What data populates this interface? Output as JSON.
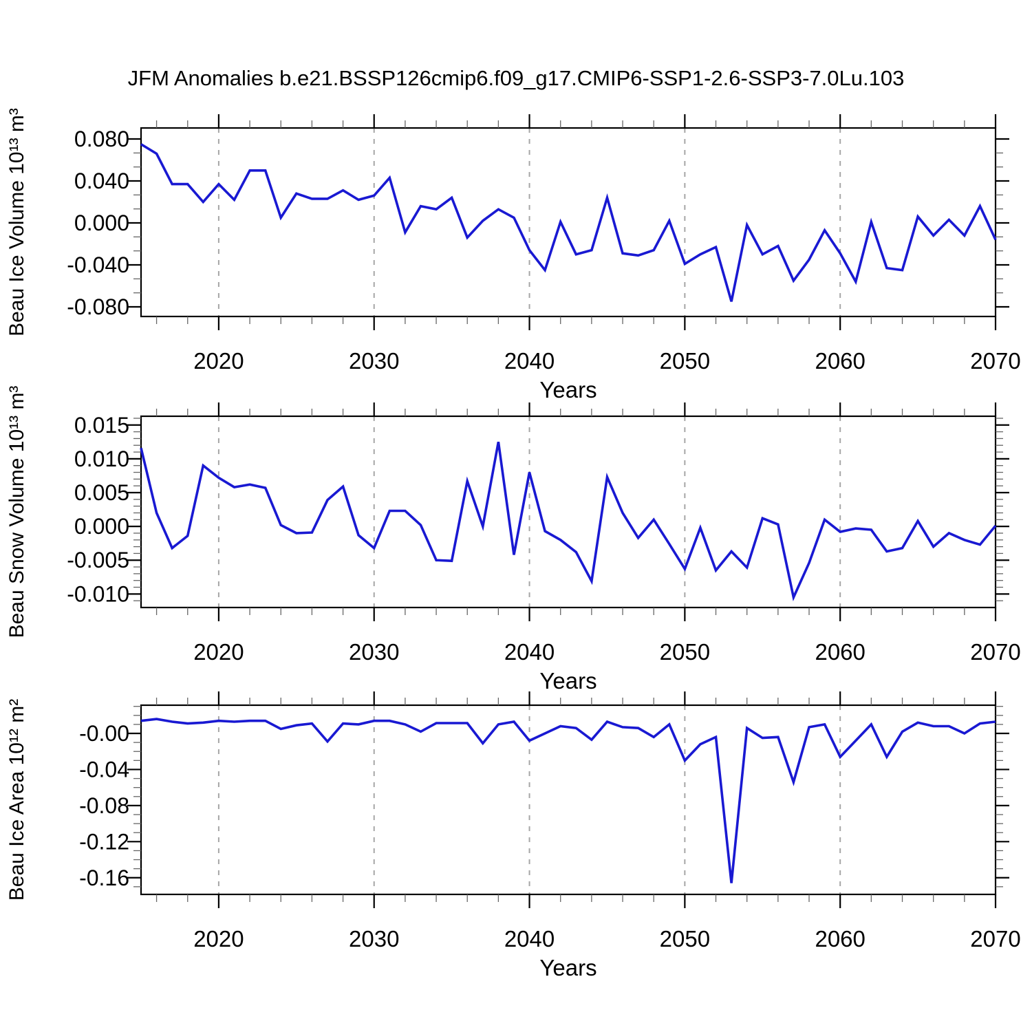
{
  "title": "JFM Anomalies b.e21.BSSP126cmip6.f09_g17.CMIP6-SSP1-2.6-SSP3-7.0Lu.103",
  "xlabel": "Years",
  "colors": {
    "line": "#1919d2",
    "grid": "#a6a6a6",
    "axis": "#000000",
    "minor_tick": "#666666",
    "background": "#ffffff"
  },
  "x_range": [
    2015,
    2070
  ],
  "x_major_step": 10,
  "x_minor_step": 2,
  "gridline_years": [
    2020,
    2030,
    2040,
    2050,
    2060
  ],
  "x_ticks": [
    {
      "value": 2020,
      "label": "2020"
    },
    {
      "value": 2030,
      "label": "2030"
    },
    {
      "value": 2040,
      "label": "2040"
    },
    {
      "value": 2050,
      "label": "2050"
    },
    {
      "value": 2060,
      "label": "2060"
    },
    {
      "value": 2070,
      "label": "2070"
    }
  ],
  "years": [
    2015,
    2016,
    2017,
    2018,
    2019,
    2020,
    2021,
    2022,
    2023,
    2024,
    2025,
    2026,
    2027,
    2028,
    2029,
    2030,
    2031,
    2032,
    2033,
    2034,
    2035,
    2036,
    2037,
    2038,
    2039,
    2040,
    2041,
    2042,
    2043,
    2044,
    2045,
    2046,
    2047,
    2048,
    2049,
    2050,
    2051,
    2052,
    2053,
    2054,
    2055,
    2056,
    2057,
    2058,
    2059,
    2060,
    2061,
    2062,
    2063,
    2064,
    2065,
    2066,
    2067,
    2068,
    2069,
    2070
  ],
  "chart_data": [
    {
      "type": "line",
      "name": "beau-ice-volume",
      "ylabel": "Beau Ice Volume 10¹³ m³",
      "xlabel": "Years",
      "ylim": [
        -0.0892,
        0.0905
      ],
      "y_major_step": 0.04,
      "y_minor_per_major": 3,
      "yticks": [
        {
          "value": 0.08,
          "label": "0.080"
        },
        {
          "value": 0.04,
          "label": "0.040"
        },
        {
          "value": 0.0,
          "label": "0.000"
        },
        {
          "value": -0.04,
          "label": "-0.040"
        },
        {
          "value": -0.08,
          "label": "-0.080"
        }
      ],
      "x": [
        2015,
        2016,
        2017,
        2018,
        2019,
        2020,
        2021,
        2022,
        2023,
        2024,
        2025,
        2026,
        2027,
        2028,
        2029,
        2030,
        2031,
        2032,
        2033,
        2034,
        2035,
        2036,
        2037,
        2038,
        2039,
        2040,
        2041,
        2042,
        2043,
        2044,
        2045,
        2046,
        2047,
        2048,
        2049,
        2050,
        2051,
        2052,
        2053,
        2054,
        2055,
        2056,
        2057,
        2058,
        2059,
        2060,
        2061,
        2062,
        2063,
        2064,
        2065,
        2066,
        2067,
        2068,
        2069,
        2070
      ],
      "values": [
        0.075,
        0.066,
        0.037,
        0.037,
        0.02,
        0.037,
        0.022,
        0.05,
        0.05,
        0.005,
        0.028,
        0.023,
        0.023,
        0.031,
        0.022,
        0.026,
        0.043,
        -0.009,
        0.016,
        0.013,
        0.024,
        -0.014,
        0.002,
        0.013,
        0.005,
        -0.026,
        -0.045,
        0.001,
        -0.03,
        -0.026,
        0.024,
        -0.029,
        -0.031,
        -0.026,
        0.002,
        -0.039,
        -0.03,
        -0.023,
        -0.075,
        -0.002,
        -0.03,
        -0.022,
        -0.055,
        -0.035,
        -0.007,
        -0.029,
        -0.056,
        0.001,
        -0.043,
        -0.045,
        0.006,
        -0.012,
        0.003,
        -0.012,
        0.016,
        -0.016
      ]
    },
    {
      "type": "line",
      "name": "beau-snow-volume",
      "ylabel": "Beau Snow Volume 10¹³ m³",
      "xlabel": "Years",
      "ylim": [
        -0.012,
        0.0163
      ],
      "y_major_step": 0.005,
      "y_minor_per_major": 5,
      "yticks": [
        {
          "value": 0.015,
          "label": "0.015"
        },
        {
          "value": 0.01,
          "label": "0.010"
        },
        {
          "value": 0.005,
          "label": "0.005"
        },
        {
          "value": 0.0,
          "label": "0.000"
        },
        {
          "value": -0.005,
          "label": "-0.005"
        },
        {
          "value": -0.01,
          "label": "-0.010"
        }
      ],
      "x": [
        2015,
        2016,
        2017,
        2018,
        2019,
        2020,
        2021,
        2022,
        2023,
        2024,
        2025,
        2026,
        2027,
        2028,
        2029,
        2030,
        2031,
        2032,
        2033,
        2034,
        2035,
        2036,
        2037,
        2038,
        2039,
        2040,
        2041,
        2042,
        2043,
        2044,
        2045,
        2046,
        2047,
        2048,
        2049,
        2050,
        2051,
        2052,
        2053,
        2054,
        2055,
        2056,
        2057,
        2058,
        2059,
        2060,
        2061,
        2062,
        2063,
        2064,
        2065,
        2066,
        2067,
        2068,
        2069,
        2070
      ],
      "values": [
        0.0116,
        0.002,
        -0.0032,
        -0.0014,
        0.009,
        0.0072,
        0.0058,
        0.0062,
        0.0057,
        0.0002,
        -0.001,
        -0.0009,
        0.0039,
        0.0059,
        -0.0013,
        -0.0032,
        0.0023,
        0.0023,
        0.0002,
        -0.005,
        -0.0051,
        0.0067,
        0.0,
        0.0125,
        -0.0042,
        0.008,
        -0.0007,
        -0.002,
        -0.0038,
        -0.0081,
        0.0073,
        0.002,
        -0.0017,
        0.001,
        -0.0026,
        -0.0063,
        -0.0002,
        -0.0065,
        -0.0037,
        -0.0061,
        0.0012,
        0.0003,
        -0.0105,
        -0.0054,
        0.001,
        -0.0008,
        -0.0003,
        -0.0005,
        -0.0037,
        -0.0032,
        0.0008,
        -0.003,
        -0.001,
        -0.002,
        -0.0027,
        0.0001
      ]
    },
    {
      "type": "line",
      "name": "beau-ice-area",
      "ylabel": "Beau Ice Area 10¹² m²",
      "xlabel": "Years",
      "ylim": [
        -0.1785,
        0.0313
      ],
      "y_major_step": 0.04,
      "y_minor_per_major": 4,
      "yticks": [
        {
          "value": 0.0,
          "label": "-0.00"
        },
        {
          "value": -0.04,
          "label": "-0.04"
        },
        {
          "value": -0.08,
          "label": "-0.08"
        },
        {
          "value": -0.12,
          "label": "-0.12"
        },
        {
          "value": -0.16,
          "label": "-0.16"
        }
      ],
      "x": [
        2015,
        2016,
        2017,
        2018,
        2019,
        2020,
        2021,
        2022,
        2023,
        2024,
        2025,
        2026,
        2027,
        2028,
        2029,
        2030,
        2031,
        2032,
        2033,
        2034,
        2035,
        2036,
        2037,
        2038,
        2039,
        2040,
        2041,
        2042,
        2043,
        2044,
        2045,
        2046,
        2047,
        2048,
        2049,
        2050,
        2051,
        2052,
        2053,
        2054,
        2055,
        2056,
        2057,
        2058,
        2059,
        2060,
        2061,
        2062,
        2063,
        2064,
        2065,
        2066,
        2067,
        2068,
        2069,
        2070
      ],
      "values": [
        0.014,
        0.016,
        0.013,
        0.011,
        0.012,
        0.014,
        0.013,
        0.014,
        0.014,
        0.005,
        0.009,
        0.011,
        -0.009,
        0.011,
        0.01,
        0.014,
        0.014,
        0.01,
        0.002,
        0.0115,
        0.0115,
        0.0115,
        -0.011,
        0.01,
        0.013,
        -0.008,
        0.0,
        0.008,
        0.006,
        -0.007,
        0.013,
        0.007,
        0.006,
        -0.004,
        0.01,
        -0.03,
        -0.012,
        -0.004,
        -0.166,
        0.006,
        -0.005,
        -0.004,
        -0.054,
        0.007,
        0.01,
        -0.026,
        -0.008,
        0.01,
        -0.026,
        0.002,
        0.012,
        0.008,
        0.008,
        0.0,
        0.011,
        0.013
      ]
    }
  ]
}
